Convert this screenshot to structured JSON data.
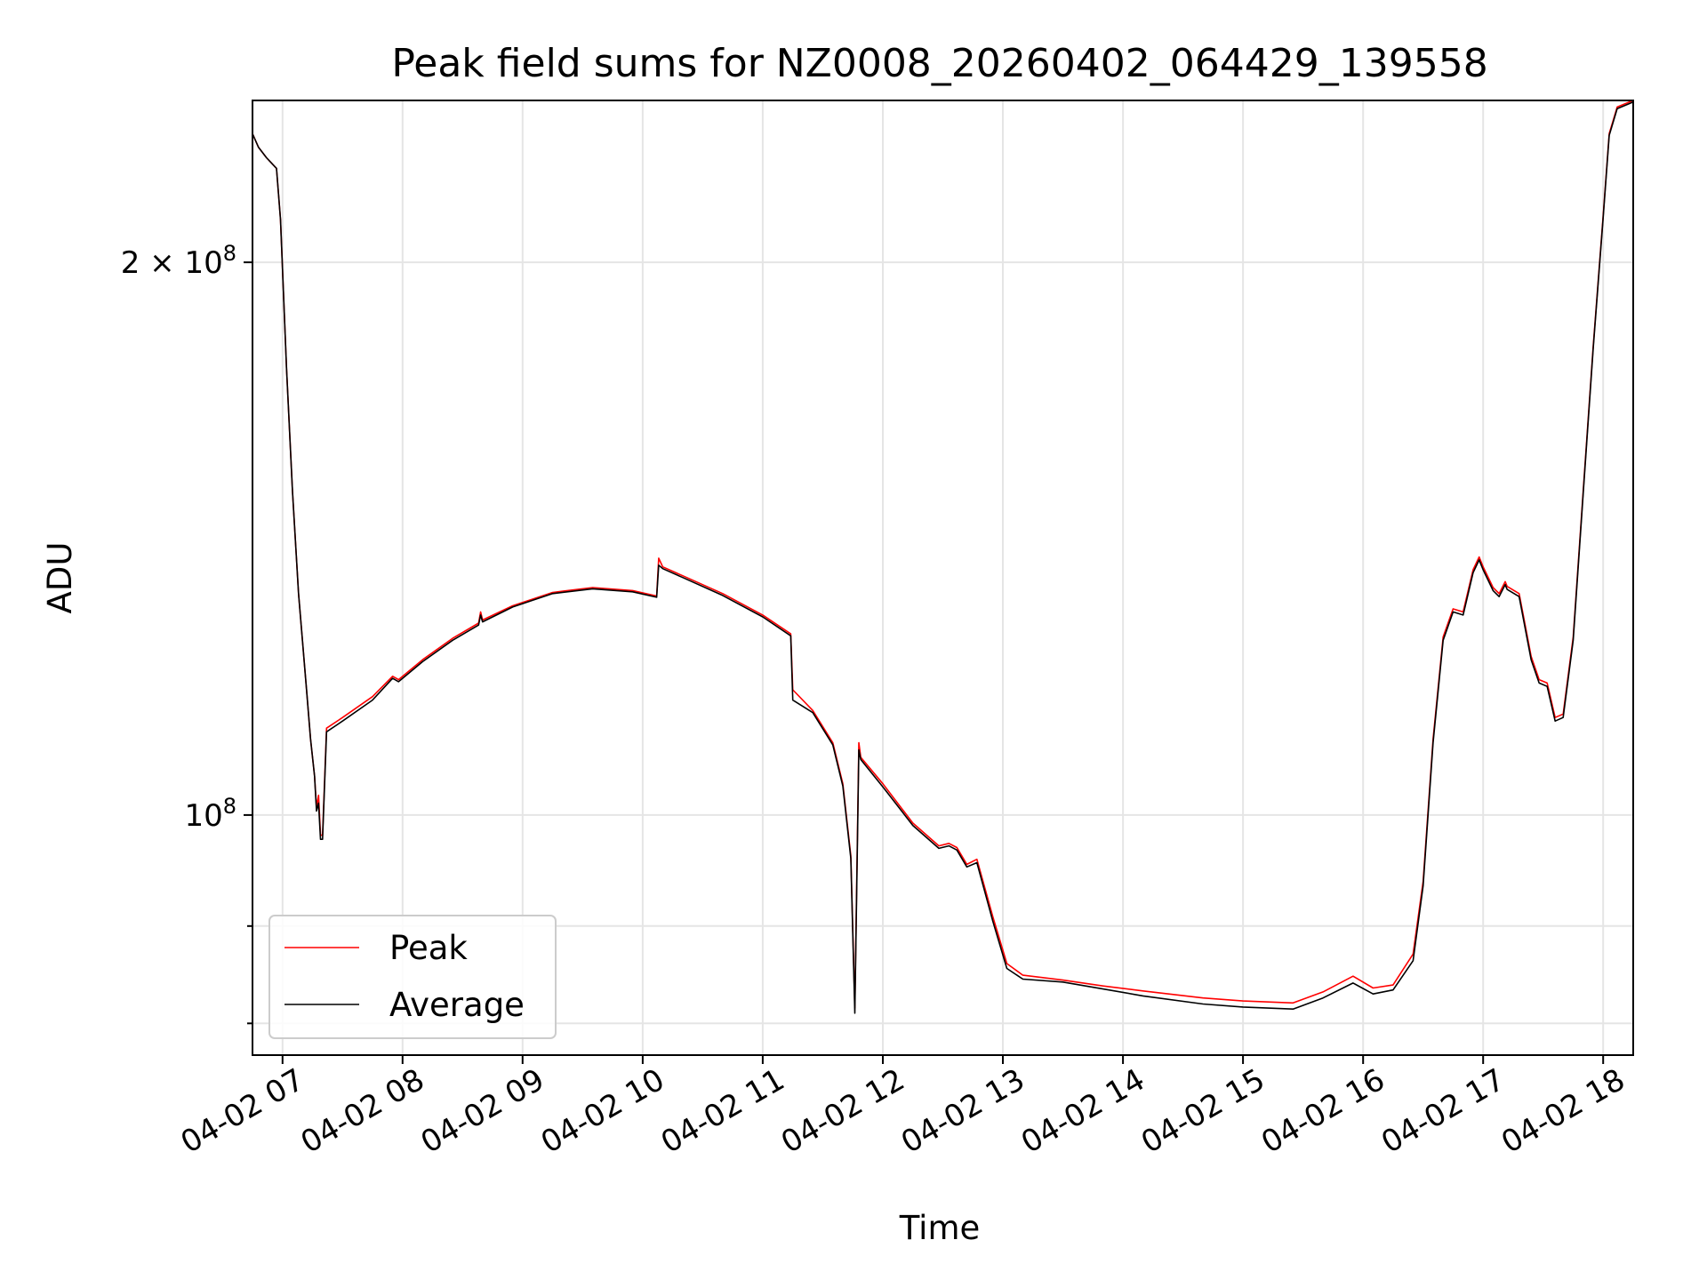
{
  "chart_data": {
    "type": "line",
    "title": "Peak field sums for NZ0008_20260402_064429_139558",
    "xlabel": "Time",
    "ylabel": "ADU",
    "x_scale": "time",
    "y_scale": "log",
    "grid": true,
    "legend_position": "lower-left",
    "xlim": [
      "2026-04-02 06:45",
      "2026-04-02 18:15"
    ],
    "ylim": [
      74000000,
      245000000
    ],
    "x_ticks": [
      {
        "value": "2026-04-02 07:00",
        "label": "04-02 07"
      },
      {
        "value": "2026-04-02 08:00",
        "label": "04-02 08"
      },
      {
        "value": "2026-04-02 09:00",
        "label": "04-02 09"
      },
      {
        "value": "2026-04-02 10:00",
        "label": "04-02 10"
      },
      {
        "value": "2026-04-02 11:00",
        "label": "04-02 11"
      },
      {
        "value": "2026-04-02 12:00",
        "label": "04-02 12"
      },
      {
        "value": "2026-04-02 13:00",
        "label": "04-02 13"
      },
      {
        "value": "2026-04-02 14:00",
        "label": "04-02 14"
      },
      {
        "value": "2026-04-02 15:00",
        "label": "04-02 15"
      },
      {
        "value": "2026-04-02 16:00",
        "label": "04-02 16"
      },
      {
        "value": "2026-04-02 17:00",
        "label": "04-02 17"
      },
      {
        "value": "2026-04-02 18:00",
        "label": "04-02 18"
      }
    ],
    "y_ticks_major": [
      {
        "value": 100000000,
        "label_base": "10",
        "label_exp": "8"
      },
      {
        "value": 200000000,
        "label_base": "2 × 10",
        "label_exp": "8"
      }
    ],
    "y_ticks_minor": [
      77000000,
      87000000
    ],
    "series": [
      {
        "name": "Peak",
        "color": "#ff0000",
        "points": [
          [
            "2026-04-02 06:45",
            235000000
          ],
          [
            "2026-04-02 06:48",
            231000000
          ],
          [
            "2026-04-02 06:52",
            228000000
          ],
          [
            "2026-04-02 06:57",
            225000000
          ],
          [
            "2026-04-02 06:59",
            211000000
          ],
          [
            "2026-04-02 07:02",
            175000000
          ],
          [
            "2026-04-02 07:05",
            150000000
          ],
          [
            "2026-04-02 07:08",
            132000000
          ],
          [
            "2026-04-02 07:12",
            117000000
          ],
          [
            "2026-04-02 07:14",
            110000000
          ],
          [
            "2026-04-02 07:16",
            105000000
          ],
          [
            "2026-04-02 07:17",
            101000000
          ],
          [
            "2026-04-02 07:18",
            102500000
          ],
          [
            "2026-04-02 07:19",
            97500000
          ],
          [
            "2026-04-02 07:20",
            97500000
          ],
          [
            "2026-04-02 07:22",
            111500000
          ],
          [
            "2026-04-02 07:30",
            113000000
          ],
          [
            "2026-04-02 07:45",
            116000000
          ],
          [
            "2026-04-02 07:55",
            119000000
          ],
          [
            "2026-04-02 07:58",
            118500000
          ],
          [
            "2026-04-02 08:10",
            121500000
          ],
          [
            "2026-04-02 08:25",
            124800000
          ],
          [
            "2026-04-02 08:38",
            127200000
          ],
          [
            "2026-04-02 08:39",
            129000000
          ],
          [
            "2026-04-02 08:40",
            127700000
          ],
          [
            "2026-04-02 08:55",
            130000000
          ],
          [
            "2026-04-02 09:15",
            132200000
          ],
          [
            "2026-04-02 09:35",
            133000000
          ],
          [
            "2026-04-02 09:55",
            132500000
          ],
          [
            "2026-04-02 10:07",
            131600000
          ],
          [
            "2026-04-02 10:08",
            138000000
          ],
          [
            "2026-04-02 10:10",
            136500000
          ],
          [
            "2026-04-02 10:20",
            135000000
          ],
          [
            "2026-04-02 10:40",
            132000000
          ],
          [
            "2026-04-02 11:00",
            128500000
          ],
          [
            "2026-04-02 11:14",
            125500000
          ],
          [
            "2026-04-02 11:15",
            117000000
          ],
          [
            "2026-04-02 11:25",
            114000000
          ],
          [
            "2026-04-02 11:35",
            109500000
          ],
          [
            "2026-04-02 11:40",
            104000000
          ],
          [
            "2026-04-02 11:44",
            95000000
          ],
          [
            "2026-04-02 11:46",
            78500000
          ],
          [
            "2026-04-02 11:48",
            109500000
          ],
          [
            "2026-04-02 11:49",
            107500000
          ],
          [
            "2026-04-02 12:00",
            104000000
          ],
          [
            "2026-04-02 12:15",
            99000000
          ],
          [
            "2026-04-02 12:28",
            96200000
          ],
          [
            "2026-04-02 12:33",
            96500000
          ],
          [
            "2026-04-02 12:37",
            96000000
          ],
          [
            "2026-04-02 12:42",
            94000000
          ],
          [
            "2026-04-02 12:47",
            94600000
          ],
          [
            "2026-04-02 12:55",
            88000000
          ],
          [
            "2026-04-02 13:02",
            83000000
          ],
          [
            "2026-04-02 13:10",
            81800000
          ],
          [
            "2026-04-02 13:30",
            81300000
          ],
          [
            "2026-04-02 13:50",
            80700000
          ],
          [
            "2026-04-02 14:10",
            80200000
          ],
          [
            "2026-04-02 14:40",
            79500000
          ],
          [
            "2026-04-02 15:00",
            79200000
          ],
          [
            "2026-04-02 15:25",
            79000000
          ],
          [
            "2026-04-02 15:40",
            80100000
          ],
          [
            "2026-04-02 15:55",
            81700000
          ],
          [
            "2026-04-02 16:05",
            80500000
          ],
          [
            "2026-04-02 16:15",
            80800000
          ],
          [
            "2026-04-02 16:25",
            84000000
          ],
          [
            "2026-04-02 16:30",
            92000000
          ],
          [
            "2026-04-02 16:35",
            110000000
          ],
          [
            "2026-04-02 16:40",
            125000000
          ],
          [
            "2026-04-02 16:45",
            129500000
          ],
          [
            "2026-04-02 16:50",
            129000000
          ],
          [
            "2026-04-02 16:55",
            136000000
          ],
          [
            "2026-04-02 16:58",
            138200000
          ],
          [
            "2026-04-02 17:00",
            136500000
          ],
          [
            "2026-04-02 17:05",
            133000000
          ],
          [
            "2026-04-02 17:08",
            132000000
          ],
          [
            "2026-04-02 17:11",
            134000000
          ],
          [
            "2026-04-02 17:12",
            133200000
          ],
          [
            "2026-04-02 17:18",
            132000000
          ],
          [
            "2026-04-02 17:24",
            122000000
          ],
          [
            "2026-04-02 17:28",
            118500000
          ],
          [
            "2026-04-02 17:32",
            118000000
          ],
          [
            "2026-04-02 17:36",
            113000000
          ],
          [
            "2026-04-02 17:40",
            113500000
          ],
          [
            "2026-04-02 17:45",
            125000000
          ],
          [
            "2026-04-02 17:50",
            150000000
          ],
          [
            "2026-04-02 17:55",
            180000000
          ],
          [
            "2026-04-02 18:00",
            212000000
          ],
          [
            "2026-04-02 18:03",
            235000000
          ],
          [
            "2026-04-02 18:07",
            243000000
          ],
          [
            "2026-04-02 18:15",
            245000000
          ]
        ]
      },
      {
        "name": "Average",
        "color": "#000000",
        "points": [
          [
            "2026-04-02 06:45",
            235000000
          ],
          [
            "2026-04-02 06:48",
            231000000
          ],
          [
            "2026-04-02 06:52",
            228000000
          ],
          [
            "2026-04-02 06:57",
            225000000
          ],
          [
            "2026-04-02 06:59",
            211000000
          ],
          [
            "2026-04-02 07:02",
            175000000
          ],
          [
            "2026-04-02 07:05",
            150000000
          ],
          [
            "2026-04-02 07:08",
            132000000
          ],
          [
            "2026-04-02 07:12",
            117000000
          ],
          [
            "2026-04-02 07:14",
            110000000
          ],
          [
            "2026-04-02 07:16",
            105000000
          ],
          [
            "2026-04-02 07:17",
            100500000
          ],
          [
            "2026-04-02 07:18",
            101500000
          ],
          [
            "2026-04-02 07:19",
            97000000
          ],
          [
            "2026-04-02 07:20",
            97000000
          ],
          [
            "2026-04-02 07:22",
            111000000
          ],
          [
            "2026-04-02 07:30",
            112500000
          ],
          [
            "2026-04-02 07:45",
            115500000
          ],
          [
            "2026-04-02 07:55",
            118700000
          ],
          [
            "2026-04-02 07:58",
            118200000
          ],
          [
            "2026-04-02 08:10",
            121200000
          ],
          [
            "2026-04-02 08:25",
            124500000
          ],
          [
            "2026-04-02 08:38",
            126900000
          ],
          [
            "2026-04-02 08:39",
            128500000
          ],
          [
            "2026-04-02 08:40",
            127400000
          ],
          [
            "2026-04-02 08:55",
            129800000
          ],
          [
            "2026-04-02 09:15",
            132000000
          ],
          [
            "2026-04-02 09:35",
            132800000
          ],
          [
            "2026-04-02 09:55",
            132300000
          ],
          [
            "2026-04-02 10:07",
            131400000
          ],
          [
            "2026-04-02 10:08",
            136800000
          ],
          [
            "2026-04-02 10:10",
            136200000
          ],
          [
            "2026-04-02 10:20",
            134700000
          ],
          [
            "2026-04-02 10:40",
            131700000
          ],
          [
            "2026-04-02 11:00",
            128200000
          ],
          [
            "2026-04-02 11:14",
            125200000
          ],
          [
            "2026-04-02 11:15",
            115500000
          ],
          [
            "2026-04-02 11:25",
            113700000
          ],
          [
            "2026-04-02 11:35",
            109200000
          ],
          [
            "2026-04-02 11:40",
            103700000
          ],
          [
            "2026-04-02 11:44",
            94700000
          ],
          [
            "2026-04-02 11:46",
            78000000
          ],
          [
            "2026-04-02 11:48",
            108500000
          ],
          [
            "2026-04-02 11:49",
            107200000
          ],
          [
            "2026-04-02 12:00",
            103600000
          ],
          [
            "2026-04-02 12:15",
            98700000
          ],
          [
            "2026-04-02 12:28",
            95900000
          ],
          [
            "2026-04-02 12:33",
            96200000
          ],
          [
            "2026-04-02 12:37",
            95700000
          ],
          [
            "2026-04-02 12:42",
            93700000
          ],
          [
            "2026-04-02 12:47",
            94200000
          ],
          [
            "2026-04-02 12:55",
            87500000
          ],
          [
            "2026-04-02 13:02",
            82500000
          ],
          [
            "2026-04-02 13:10",
            81400000
          ],
          [
            "2026-04-02 13:30",
            81100000
          ],
          [
            "2026-04-02 13:50",
            80400000
          ],
          [
            "2026-04-02 14:10",
            79700000
          ],
          [
            "2026-04-02 14:40",
            78900000
          ],
          [
            "2026-04-02 15:00",
            78600000
          ],
          [
            "2026-04-02 15:25",
            78400000
          ],
          [
            "2026-04-02 15:40",
            79500000
          ],
          [
            "2026-04-02 15:55",
            81000000
          ],
          [
            "2026-04-02 16:05",
            79900000
          ],
          [
            "2026-04-02 16:15",
            80300000
          ],
          [
            "2026-04-02 16:25",
            83300000
          ],
          [
            "2026-04-02 16:30",
            91500000
          ],
          [
            "2026-04-02 16:35",
            109500000
          ],
          [
            "2026-04-02 16:40",
            124500000
          ],
          [
            "2026-04-02 16:45",
            129000000
          ],
          [
            "2026-04-02 16:50",
            128500000
          ],
          [
            "2026-04-02 16:55",
            135500000
          ],
          [
            "2026-04-02 16:58",
            137700000
          ],
          [
            "2026-04-02 17:00",
            136000000
          ],
          [
            "2026-04-02 17:05",
            132500000
          ],
          [
            "2026-04-02 17:08",
            131500000
          ],
          [
            "2026-04-02 17:11",
            133500000
          ],
          [
            "2026-04-02 17:12",
            132700000
          ],
          [
            "2026-04-02 17:18",
            131500000
          ],
          [
            "2026-04-02 17:24",
            121500000
          ],
          [
            "2026-04-02 17:28",
            118000000
          ],
          [
            "2026-04-02 17:32",
            117500000
          ],
          [
            "2026-04-02 17:36",
            112500000
          ],
          [
            "2026-04-02 17:40",
            113000000
          ],
          [
            "2026-04-02 17:45",
            124500000
          ],
          [
            "2026-04-02 17:50",
            149500000
          ],
          [
            "2026-04-02 17:55",
            179500000
          ],
          [
            "2026-04-02 18:00",
            211500000
          ],
          [
            "2026-04-02 18:03",
            234500000
          ],
          [
            "2026-04-02 18:07",
            242500000
          ],
          [
            "2026-04-02 18:15",
            244500000
          ]
        ]
      }
    ]
  }
}
